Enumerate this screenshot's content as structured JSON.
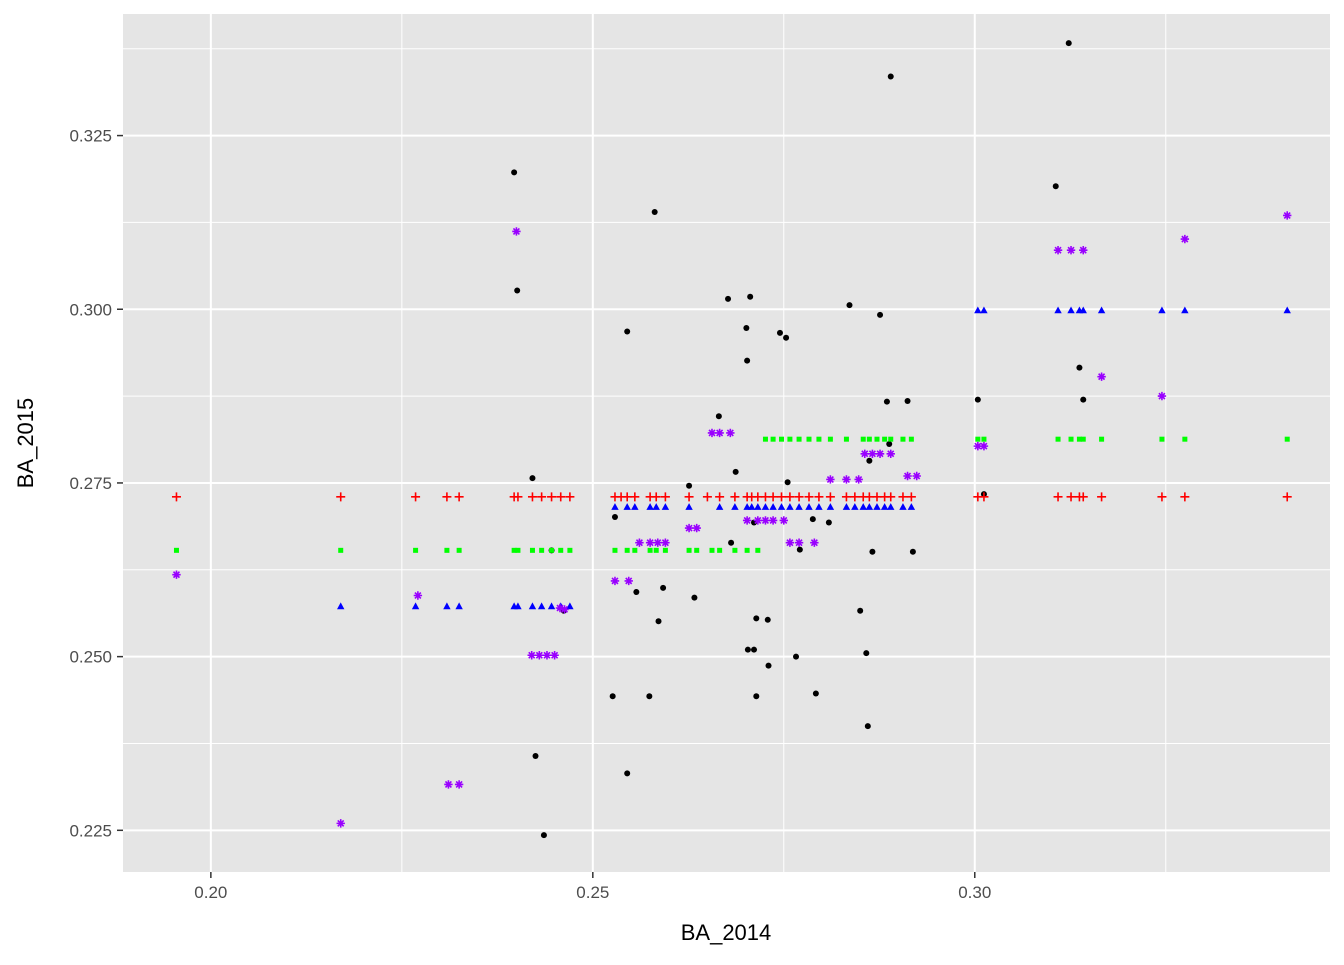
{
  "chart_data": {
    "type": "scatter",
    "title": "",
    "xlabel": "BA_2014",
    "ylabel": "BA_2015",
    "xlim": [
      0.1885,
      0.3465
    ],
    "ylim": [
      0.219,
      0.3425
    ],
    "x_ticks": [
      0.2,
      0.25,
      0.3
    ],
    "x_tick_labels": [
      "0.20",
      "0.25",
      "0.30"
    ],
    "y_ticks": [
      0.225,
      0.25,
      0.275,
      0.3,
      0.325
    ],
    "y_tick_labels": [
      "0.225",
      "0.250",
      "0.275",
      "0.300",
      "0.325"
    ],
    "grid": true,
    "legend": "none",
    "colors": {
      "panel": "#e5e5e5",
      "grid": "#ffffff",
      "tick": "#333333"
    },
    "series": [
      {
        "color": "#000000",
        "shape": "circle",
        "points": [
          [
            0.2397,
            0.3197
          ],
          [
            0.2401,
            0.3027
          ],
          [
            0.2421,
            0.2757
          ],
          [
            0.2425,
            0.2357
          ],
          [
            0.2436,
            0.2243
          ],
          [
            0.2446,
            0.2653
          ],
          [
            0.2462,
            0.2566
          ],
          [
            0.2526,
            0.2443
          ],
          [
            0.2529,
            0.2701
          ],
          [
            0.2545,
            0.2968
          ],
          [
            0.2545,
            0.2332
          ],
          [
            0.2557,
            0.2593
          ],
          [
            0.2574,
            0.2443
          ],
          [
            0.2581,
            0.314
          ],
          [
            0.2586,
            0.2551
          ],
          [
            0.2592,
            0.2599
          ],
          [
            0.2626,
            0.2746
          ],
          [
            0.2633,
            0.2585
          ],
          [
            0.2665,
            0.2846
          ],
          [
            0.2677,
            0.3015
          ],
          [
            0.2681,
            0.2664
          ],
          [
            0.2687,
            0.2766
          ],
          [
            0.2701,
            0.2973
          ],
          [
            0.2702,
            0.2926
          ],
          [
            0.2703,
            0.251
          ],
          [
            0.2706,
            0.3018
          ],
          [
            0.2711,
            0.2693
          ],
          [
            0.2711,
            0.251
          ],
          [
            0.2714,
            0.2443
          ],
          [
            0.2714,
            0.2555
          ],
          [
            0.2729,
            0.2553
          ],
          [
            0.273,
            0.2487
          ],
          [
            0.2745,
            0.2966
          ],
          [
            0.2753,
            0.2959
          ],
          [
            0.2755,
            0.2751
          ],
          [
            0.2766,
            0.25
          ],
          [
            0.2771,
            0.2654
          ],
          [
            0.2788,
            0.2698
          ],
          [
            0.2792,
            0.2447
          ],
          [
            0.2809,
            0.2693
          ],
          [
            0.2836,
            0.3006
          ],
          [
            0.285,
            0.2566
          ],
          [
            0.2858,
            0.2505
          ],
          [
            0.286,
            0.24
          ],
          [
            0.2862,
            0.2782
          ],
          [
            0.2866,
            0.2651
          ],
          [
            0.2876,
            0.2992
          ],
          [
            0.2885,
            0.2867
          ],
          [
            0.2888,
            0.2806
          ],
          [
            0.289,
            0.3335
          ],
          [
            0.2912,
            0.2868
          ],
          [
            0.2919,
            0.2651
          ],
          [
            0.3004,
            0.287
          ],
          [
            0.3012,
            0.2734
          ],
          [
            0.3106,
            0.3177
          ],
          [
            0.3123,
            0.3383
          ],
          [
            0.3137,
            0.2916
          ],
          [
            0.3142,
            0.287
          ]
        ]
      },
      {
        "color": "#ff0000",
        "shape": "plus",
        "points": [
          [
            0.1955,
            0.273
          ],
          [
            0.217,
            0.273
          ],
          [
            0.2268,
            0.273
          ],
          [
            0.2309,
            0.273
          ],
          [
            0.2325,
            0.273
          ],
          [
            0.2397,
            0.273
          ],
          [
            0.2402,
            0.273
          ],
          [
            0.2421,
            0.273
          ],
          [
            0.2433,
            0.273
          ],
          [
            0.2446,
            0.273
          ],
          [
            0.2458,
            0.273
          ],
          [
            0.247,
            0.273
          ],
          [
            0.2529,
            0.273
          ],
          [
            0.2537,
            0.273
          ],
          [
            0.2545,
            0.273
          ],
          [
            0.2555,
            0.273
          ],
          [
            0.2575,
            0.273
          ],
          [
            0.2583,
            0.273
          ],
          [
            0.2595,
            0.273
          ],
          [
            0.2626,
            0.273
          ],
          [
            0.265,
            0.273
          ],
          [
            0.2666,
            0.273
          ],
          [
            0.2686,
            0.273
          ],
          [
            0.2702,
            0.273
          ],
          [
            0.2708,
            0.273
          ],
          [
            0.2716,
            0.273
          ],
          [
            0.2726,
            0.273
          ],
          [
            0.2736,
            0.273
          ],
          [
            0.2747,
            0.273
          ],
          [
            0.2758,
            0.273
          ],
          [
            0.277,
            0.273
          ],
          [
            0.2783,
            0.273
          ],
          [
            0.2796,
            0.273
          ],
          [
            0.2811,
            0.273
          ],
          [
            0.2832,
            0.273
          ],
          [
            0.2843,
            0.273
          ],
          [
            0.2854,
            0.273
          ],
          [
            0.2862,
            0.273
          ],
          [
            0.2872,
            0.273
          ],
          [
            0.2882,
            0.273
          ],
          [
            0.289,
            0.273
          ],
          [
            0.2906,
            0.273
          ],
          [
            0.2917,
            0.273
          ],
          [
            0.3004,
            0.273
          ],
          [
            0.3012,
            0.273
          ],
          [
            0.3109,
            0.273
          ],
          [
            0.3126,
            0.273
          ],
          [
            0.3137,
            0.273
          ],
          [
            0.3142,
            0.273
          ],
          [
            0.3166,
            0.273
          ],
          [
            0.3245,
            0.273
          ],
          [
            0.3275,
            0.273
          ],
          [
            0.3409,
            0.273
          ]
        ]
      },
      {
        "color": "#00ff00",
        "shape": "square",
        "points": [
          [
            0.1955,
            0.2653
          ],
          [
            0.217,
            0.2653
          ],
          [
            0.2268,
            0.2653
          ],
          [
            0.2309,
            0.2653
          ],
          [
            0.2325,
            0.2653
          ],
          [
            0.2397,
            0.2653
          ],
          [
            0.2402,
            0.2653
          ],
          [
            0.2421,
            0.2653
          ],
          [
            0.2433,
            0.2653
          ],
          [
            0.2446,
            0.2653
          ],
          [
            0.2458,
            0.2653
          ],
          [
            0.247,
            0.2653
          ],
          [
            0.2529,
            0.2653
          ],
          [
            0.2545,
            0.2653
          ],
          [
            0.2555,
            0.2653
          ],
          [
            0.2575,
            0.2653
          ],
          [
            0.2583,
            0.2653
          ],
          [
            0.2595,
            0.2653
          ],
          [
            0.2626,
            0.2653
          ],
          [
            0.2636,
            0.2653
          ],
          [
            0.2656,
            0.2653
          ],
          [
            0.2666,
            0.2653
          ],
          [
            0.2686,
            0.2653
          ],
          [
            0.2702,
            0.2653
          ],
          [
            0.2716,
            0.2653
          ],
          [
            0.2726,
            0.2813
          ],
          [
            0.2736,
            0.2813
          ],
          [
            0.2747,
            0.2813
          ],
          [
            0.2758,
            0.2813
          ],
          [
            0.277,
            0.2813
          ],
          [
            0.2783,
            0.2813
          ],
          [
            0.2796,
            0.2813
          ],
          [
            0.2811,
            0.2813
          ],
          [
            0.2832,
            0.2813
          ],
          [
            0.2854,
            0.2813
          ],
          [
            0.2862,
            0.2813
          ],
          [
            0.2872,
            0.2813
          ],
          [
            0.2882,
            0.2813
          ],
          [
            0.289,
            0.2813
          ],
          [
            0.2906,
            0.2813
          ],
          [
            0.2917,
            0.2813
          ],
          [
            0.3004,
            0.2813
          ],
          [
            0.3012,
            0.2813
          ],
          [
            0.3109,
            0.2813
          ],
          [
            0.3126,
            0.2813
          ],
          [
            0.3137,
            0.2813
          ],
          [
            0.3142,
            0.2813
          ],
          [
            0.3166,
            0.2813
          ],
          [
            0.3245,
            0.2813
          ],
          [
            0.3275,
            0.2813
          ],
          [
            0.3409,
            0.2813
          ]
        ]
      },
      {
        "color": "#0000ff",
        "shape": "triangle",
        "points": [
          [
            0.217,
            0.2572
          ],
          [
            0.2268,
            0.2572
          ],
          [
            0.2309,
            0.2572
          ],
          [
            0.2325,
            0.2572
          ],
          [
            0.2397,
            0.2572
          ],
          [
            0.2402,
            0.2572
          ],
          [
            0.2421,
            0.2572
          ],
          [
            0.2433,
            0.2572
          ],
          [
            0.2446,
            0.2572
          ],
          [
            0.2458,
            0.2572
          ],
          [
            0.247,
            0.2572
          ],
          [
            0.2529,
            0.2715
          ],
          [
            0.2545,
            0.2715
          ],
          [
            0.2555,
            0.2715
          ],
          [
            0.2575,
            0.2715
          ],
          [
            0.2583,
            0.2715
          ],
          [
            0.2595,
            0.2715
          ],
          [
            0.2626,
            0.2715
          ],
          [
            0.2666,
            0.2715
          ],
          [
            0.2686,
            0.2715
          ],
          [
            0.2702,
            0.2715
          ],
          [
            0.2708,
            0.2715
          ],
          [
            0.2716,
            0.2715
          ],
          [
            0.2726,
            0.2715
          ],
          [
            0.2736,
            0.2715
          ],
          [
            0.2747,
            0.2715
          ],
          [
            0.2758,
            0.2715
          ],
          [
            0.277,
            0.2715
          ],
          [
            0.2783,
            0.2715
          ],
          [
            0.2796,
            0.2715
          ],
          [
            0.2811,
            0.2715
          ],
          [
            0.2832,
            0.2715
          ],
          [
            0.2843,
            0.2715
          ],
          [
            0.2854,
            0.2715
          ],
          [
            0.2862,
            0.2715
          ],
          [
            0.2872,
            0.2715
          ],
          [
            0.2882,
            0.2715
          ],
          [
            0.289,
            0.2715
          ],
          [
            0.2906,
            0.2715
          ],
          [
            0.2917,
            0.2715
          ],
          [
            0.3004,
            0.2998
          ],
          [
            0.3012,
            0.2998
          ],
          [
            0.3109,
            0.2998
          ],
          [
            0.3126,
            0.2998
          ],
          [
            0.3137,
            0.2998
          ],
          [
            0.3142,
            0.2998
          ],
          [
            0.3166,
            0.2998
          ],
          [
            0.3245,
            0.2998
          ],
          [
            0.3275,
            0.2998
          ],
          [
            0.3409,
            0.2998
          ]
        ]
      },
      {
        "color": "#9900ff",
        "shape": "star",
        "points": [
          [
            0.1955,
            0.2618
          ],
          [
            0.217,
            0.226
          ],
          [
            0.2271,
            0.2588
          ],
          [
            0.2311,
            0.2316
          ],
          [
            0.2325,
            0.2316
          ],
          [
            0.24,
            0.3112
          ],
          [
            0.242,
            0.2502
          ],
          [
            0.243,
            0.2502
          ],
          [
            0.244,
            0.2502
          ],
          [
            0.245,
            0.2502
          ],
          [
            0.2457,
            0.257
          ],
          [
            0.2463,
            0.2568
          ],
          [
            0.2529,
            0.2609
          ],
          [
            0.2547,
            0.2609
          ],
          [
            0.2561,
            0.2664
          ],
          [
            0.2575,
            0.2664
          ],
          [
            0.2585,
            0.2664
          ],
          [
            0.2595,
            0.2664
          ],
          [
            0.2626,
            0.2685
          ],
          [
            0.2636,
            0.2685
          ],
          [
            0.2656,
            0.2822
          ],
          [
            0.2666,
            0.2822
          ],
          [
            0.268,
            0.2822
          ],
          [
            0.2702,
            0.2696
          ],
          [
            0.2716,
            0.2696
          ],
          [
            0.2726,
            0.2696
          ],
          [
            0.2736,
            0.2696
          ],
          [
            0.275,
            0.2696
          ],
          [
            0.2758,
            0.2664
          ],
          [
            0.277,
            0.2664
          ],
          [
            0.279,
            0.2664
          ],
          [
            0.2811,
            0.2755
          ],
          [
            0.2832,
            0.2755
          ],
          [
            0.2848,
            0.2755
          ],
          [
            0.2856,
            0.2792
          ],
          [
            0.2866,
            0.2792
          ],
          [
            0.2876,
            0.2792
          ],
          [
            0.289,
            0.2792
          ],
          [
            0.2912,
            0.276
          ],
          [
            0.2924,
            0.276
          ],
          [
            0.3004,
            0.2803
          ],
          [
            0.3012,
            0.2803
          ],
          [
            0.3109,
            0.3085
          ],
          [
            0.3126,
            0.3085
          ],
          [
            0.3142,
            0.3085
          ],
          [
            0.3166,
            0.2903
          ],
          [
            0.3245,
            0.2875
          ],
          [
            0.3275,
            0.3101
          ],
          [
            0.3409,
            0.3135
          ]
        ]
      }
    ]
  }
}
